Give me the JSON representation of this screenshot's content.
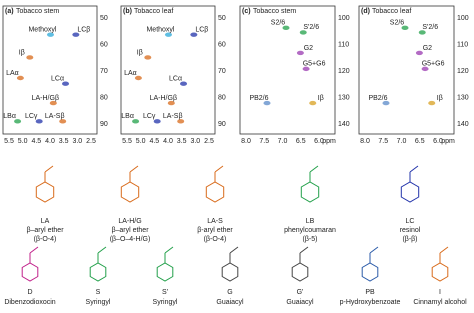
{
  "panels": [
    {
      "letter": "(a)",
      "title": "Tobacco stem",
      "xticks": [
        "5.5",
        "5.0",
        "4.5",
        "4.0",
        "3.5",
        "3.0",
        "2.5"
      ],
      "yticks": [
        "50",
        "60",
        "70",
        "80",
        "90"
      ],
      "labels": [
        "Methoxyl",
        "LCβ",
        "Iβ",
        "LAα",
        "LCα",
        "LA-H/Gβ",
        "LBα",
        "LCγ",
        "LA-Sβ"
      ]
    },
    {
      "letter": "(b)",
      "title": "Tobacco leaf",
      "xticks": [
        "5.5",
        "5.0",
        "4.5",
        "4.0",
        "3.5",
        "3.0",
        "2.5"
      ],
      "yticks": [
        "50",
        "60",
        "70",
        "80",
        "90"
      ],
      "labels": [
        "Methoxyl",
        "LCβ",
        "Iβ",
        "LAα",
        "LCα",
        "LA-H/Gβ",
        "LBα",
        "LCγ",
        "LA-Sβ"
      ]
    },
    {
      "letter": "(c)",
      "title": "Tobacco stem",
      "xticks": [
        "8.0",
        "7.5",
        "7.0",
        "6.5",
        "6.0"
      ],
      "x_unit": "ppm",
      "yticks": [
        "100",
        "110",
        "120",
        "130",
        "140"
      ],
      "labels": [
        "S2/6",
        "S'2/6",
        "G2",
        "G5+G6",
        "Iβ",
        "PB2/6"
      ]
    },
    {
      "letter": "(d)",
      "title": "Tobacco leaf",
      "xticks": [
        "8.0",
        "7.5",
        "7.0",
        "6.5",
        "6.0"
      ],
      "x_unit": "ppm",
      "yticks": [
        "100",
        "110",
        "120",
        "130",
        "140"
      ],
      "labels": [
        "S2/6",
        "S'2/6",
        "G2",
        "G5+G6",
        "Iβ",
        "PB2/6"
      ]
    }
  ],
  "structures_row1": [
    {
      "code": "LA",
      "name": "β–aryl ether",
      "linkage": "(β-O-4)"
    },
    {
      "code": "LA-H/G",
      "name": "β–aryl ether",
      "linkage": "(β–O–4-H/G)"
    },
    {
      "code": "LA-S",
      "name": "β-aryl ether",
      "linkage": "(β-O-4)"
    },
    {
      "code": "LB",
      "name": "phenylcoumaran",
      "linkage": "(β-5)"
    },
    {
      "code": "LC",
      "name": "resinol",
      "linkage": "(β-β)"
    }
  ],
  "structures_row2": [
    {
      "code": "D",
      "name": "Dibenzodioxocin"
    },
    {
      "code": "S",
      "name": "Syringyl"
    },
    {
      "code": "S'",
      "name": "Syringyl"
    },
    {
      "code": "G",
      "name": "Guaiacyl"
    },
    {
      "code": "G'",
      "name": "Guaiacyl"
    },
    {
      "code": "PB",
      "name": "p-Hydroxybenzoate"
    },
    {
      "code": "I",
      "name": "Cinnamyl  alcohol"
    }
  ]
}
